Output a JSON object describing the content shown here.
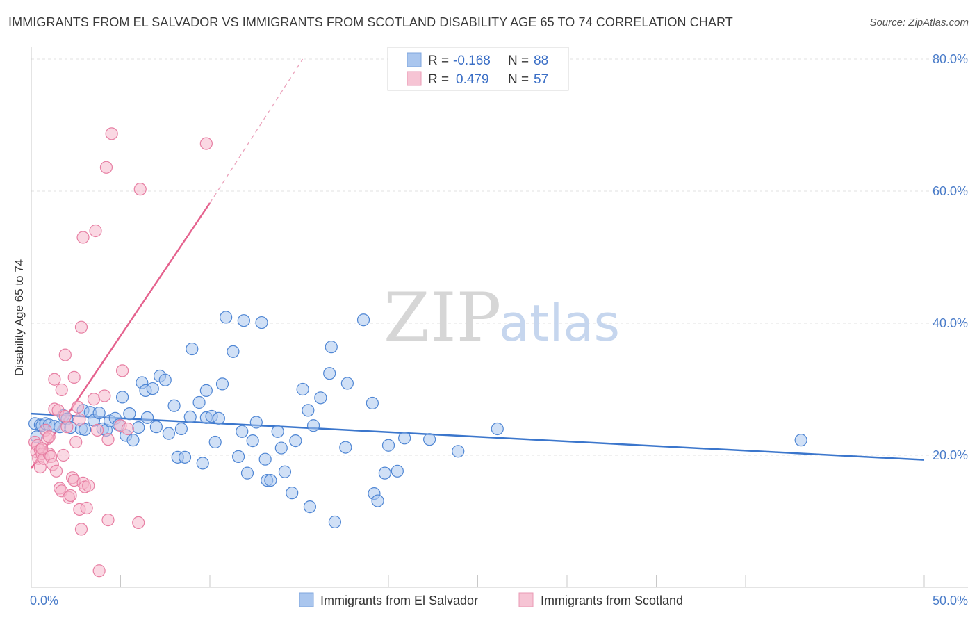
{
  "title": "IMMIGRANTS FROM EL SALVADOR VS IMMIGRANTS FROM SCOTLAND DISABILITY AGE 65 TO 74 CORRELATION CHART",
  "source": "Source: ZipAtlas.com",
  "watermark": {
    "zip": "ZIP",
    "atlas": "atlas"
  },
  "colors": {
    "blue": "#3b76cc",
    "blue_fill": "#aac6ee",
    "pink": "#e5628e",
    "pink_fill": "#f6b8cc",
    "grid": "#e2e2e2",
    "tick_text": "#4a7cc9"
  },
  "legend_top": {
    "r_label": "R =",
    "n_label": "N =",
    "rows": [
      {
        "r": "-0.168",
        "n": "88",
        "series": "blue"
      },
      {
        "r": "0.479",
        "n": "57",
        "series": "pink"
      }
    ]
  },
  "chart_data": {
    "type": "scatter",
    "title": "IMMIGRANTS FROM EL SALVADOR VS IMMIGRANTS FROM SCOTLAND DISABILITY AGE 65 TO 74 CORRELATION CHART",
    "xlabel": "",
    "ylabel": "Disability Age 65 to 74",
    "xlim": [
      0,
      50
    ],
    "ylim": [
      0,
      82
    ],
    "x_tick_labels": [
      "0.0%",
      "50.0%"
    ],
    "y_ticks": [
      20,
      40,
      60,
      80
    ],
    "y_tick_labels": [
      "20.0%",
      "40.0%",
      "60.0%",
      "80.0%"
    ],
    "grid": true,
    "legend_position": "bottom",
    "series": [
      {
        "name": "Immigrants from El Salvador",
        "color": "#3b76cc",
        "r": -0.168,
        "n": 88,
        "trend": {
          "x": [
            0,
            50
          ],
          "y": [
            26.3,
            19.3
          ],
          "dashed_extension": false
        },
        "points": [
          [
            0.2,
            24.8
          ],
          [
            0.5,
            24.6
          ],
          [
            0.6,
            24.5
          ],
          [
            0.8,
            24.8
          ],
          [
            1.0,
            24.6
          ],
          [
            1.3,
            24.4
          ],
          [
            1.6,
            24.3
          ],
          [
            1.8,
            26.0
          ],
          [
            2.0,
            25.5
          ],
          [
            2.2,
            24.2
          ],
          [
            2.8,
            24.0
          ],
          [
            2.9,
            26.8
          ],
          [
            3.0,
            23.9
          ],
          [
            3.3,
            26.5
          ],
          [
            3.5,
            25.3
          ],
          [
            3.8,
            26.4
          ],
          [
            4.0,
            24.0
          ],
          [
            4.2,
            23.8
          ],
          [
            4.4,
            25.2
          ],
          [
            4.7,
            25.6
          ],
          [
            4.9,
            24.6
          ],
          [
            5.1,
            28.8
          ],
          [
            5.3,
            23.0
          ],
          [
            5.5,
            26.3
          ],
          [
            5.7,
            22.3
          ],
          [
            6.0,
            24.2
          ],
          [
            6.2,
            31.0
          ],
          [
            6.4,
            29.8
          ],
          [
            6.5,
            25.7
          ],
          [
            6.8,
            30.1
          ],
          [
            7.0,
            24.3
          ],
          [
            7.2,
            32.0
          ],
          [
            7.5,
            31.4
          ],
          [
            7.7,
            23.3
          ],
          [
            8.0,
            27.5
          ],
          [
            8.2,
            19.7
          ],
          [
            8.4,
            24.0
          ],
          [
            8.6,
            19.7
          ],
          [
            8.9,
            25.8
          ],
          [
            9.0,
            36.1
          ],
          [
            9.4,
            28.0
          ],
          [
            9.6,
            18.8
          ],
          [
            9.8,
            25.7
          ],
          [
            9.8,
            29.8
          ],
          [
            10.1,
            25.9
          ],
          [
            10.3,
            22.0
          ],
          [
            10.5,
            25.6
          ],
          [
            10.7,
            30.8
          ],
          [
            10.9,
            40.9
          ],
          [
            11.3,
            35.7
          ],
          [
            11.6,
            19.8
          ],
          [
            11.8,
            23.6
          ],
          [
            11.9,
            40.4
          ],
          [
            12.1,
            17.3
          ],
          [
            12.4,
            22.2
          ],
          [
            12.6,
            25.0
          ],
          [
            12.9,
            40.1
          ],
          [
            13.1,
            19.4
          ],
          [
            13.2,
            16.2
          ],
          [
            13.4,
            16.2
          ],
          [
            13.8,
            23.6
          ],
          [
            14.0,
            21.1
          ],
          [
            14.2,
            17.5
          ],
          [
            14.6,
            14.3
          ],
          [
            14.8,
            22.2
          ],
          [
            15.2,
            30.0
          ],
          [
            15.5,
            26.8
          ],
          [
            15.6,
            12.2
          ],
          [
            15.8,
            24.5
          ],
          [
            16.2,
            28.7
          ],
          [
            16.7,
            32.4
          ],
          [
            16.8,
            36.4
          ],
          [
            17.0,
            9.9
          ],
          [
            17.6,
            21.2
          ],
          [
            17.7,
            30.9
          ],
          [
            18.6,
            40.5
          ],
          [
            19.1,
            27.9
          ],
          [
            19.2,
            14.2
          ],
          [
            19.4,
            13.1
          ],
          [
            19.8,
            17.3
          ],
          [
            20.0,
            21.5
          ],
          [
            20.5,
            17.6
          ],
          [
            20.9,
            22.6
          ],
          [
            22.3,
            22.4
          ],
          [
            23.9,
            20.6
          ],
          [
            26.1,
            24.0
          ],
          [
            43.1,
            22.3
          ],
          [
            0.3,
            22.8
          ]
        ]
      },
      {
        "name": "Immigrants from Scotland",
        "color": "#e5628e",
        "r": 0.479,
        "n": 57,
        "trend": {
          "x": [
            0,
            10
          ],
          "y": [
            18.0,
            58.2
          ],
          "dashed_extension": true,
          "dashed_to": [
            15.2,
            80.0
          ]
        },
        "points": [
          [
            0.2,
            22.0
          ],
          [
            0.3,
            20.5
          ],
          [
            0.35,
            21.5
          ],
          [
            0.4,
            19.5
          ],
          [
            0.5,
            20.8
          ],
          [
            0.5,
            18.2
          ],
          [
            0.6,
            20.2
          ],
          [
            0.7,
            19.5
          ],
          [
            0.8,
            23.8
          ],
          [
            0.9,
            22.5
          ],
          [
            1.0,
            20.2
          ],
          [
            1.1,
            19.8
          ],
          [
            1.2,
            18.6
          ],
          [
            1.3,
            27.0
          ],
          [
            1.4,
            17.6
          ],
          [
            1.5,
            26.8
          ],
          [
            1.6,
            15.0
          ],
          [
            1.7,
            14.6
          ],
          [
            1.8,
            20.0
          ],
          [
            1.9,
            25.9
          ],
          [
            2.0,
            24.3
          ],
          [
            2.1,
            13.6
          ],
          [
            2.2,
            13.9
          ],
          [
            2.3,
            16.6
          ],
          [
            2.4,
            16.2
          ],
          [
            2.5,
            22.0
          ],
          [
            2.6,
            27.3
          ],
          [
            2.7,
            11.8
          ],
          [
            2.8,
            8.8
          ],
          [
            2.9,
            15.8
          ],
          [
            3.0,
            15.2
          ],
          [
            3.1,
            12.0
          ],
          [
            1.3,
            31.5
          ],
          [
            1.7,
            29.9
          ],
          [
            1.9,
            35.2
          ],
          [
            2.4,
            31.8
          ],
          [
            2.7,
            25.4
          ],
          [
            2.8,
            39.4
          ],
          [
            3.2,
            15.4
          ],
          [
            3.5,
            28.5
          ],
          [
            3.7,
            23.8
          ],
          [
            3.8,
            2.5
          ],
          [
            4.1,
            29.0
          ],
          [
            4.3,
            10.2
          ],
          [
            4.3,
            22.4
          ],
          [
            2.9,
            53.0
          ],
          [
            3.6,
            54.0
          ],
          [
            4.2,
            63.6
          ],
          [
            4.5,
            68.7
          ],
          [
            5.0,
            24.5
          ],
          [
            5.1,
            32.8
          ],
          [
            5.4,
            24.0
          ],
          [
            6.0,
            9.8
          ],
          [
            6.1,
            60.3
          ],
          [
            9.8,
            67.2
          ],
          [
            0.6,
            21.0
          ],
          [
            1.0,
            22.8
          ]
        ]
      }
    ]
  },
  "bottom_legend": [
    {
      "label": "Immigrants from El Salvador",
      "series": "blue"
    },
    {
      "label": "Immigrants from Scotland",
      "series": "pink"
    }
  ]
}
